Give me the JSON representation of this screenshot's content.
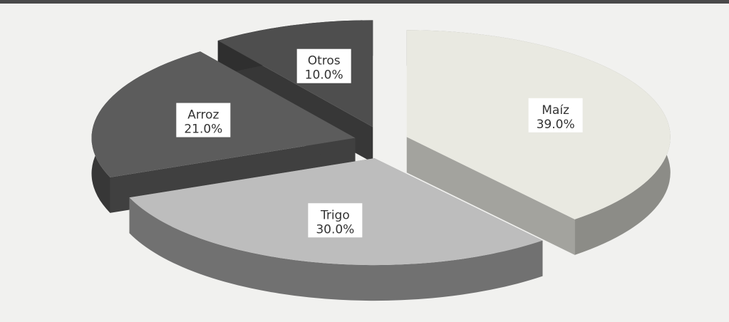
{
  "chart_data": {
    "type": "pie",
    "categories": [
      "Maíz",
      "Trigo",
      "Arroz",
      "Otros"
    ],
    "values": [
      39,
      30,
      21,
      10
    ],
    "value_labels": [
      "39.0%",
      "30.0%",
      "21.0%",
      "10.0%"
    ],
    "colors": [
      "#e9e9e1",
      "#bdbdbd",
      "#5c5c5c",
      "#4e4e4e"
    ]
  }
}
